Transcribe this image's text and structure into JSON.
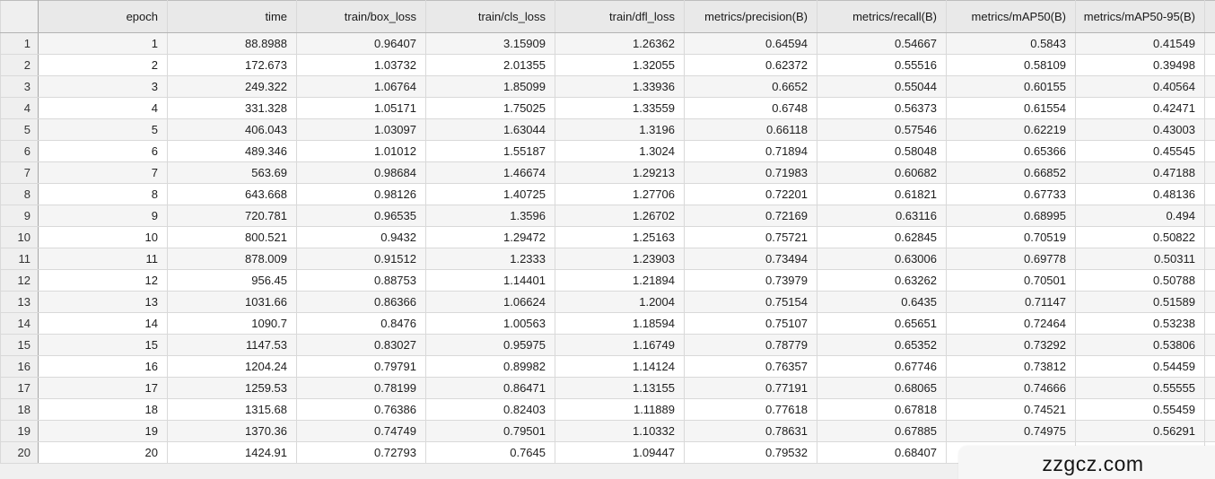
{
  "table": {
    "columns": [
      "epoch",
      "time",
      "train/box_loss",
      "train/cls_loss",
      "train/dfl_loss",
      "metrics/precision(B)",
      "metrics/recall(B)",
      "metrics/mAP50(B)",
      "metrics/mAP50-95(B)"
    ],
    "rows": [
      [
        "1",
        "1",
        "88.8988",
        "0.96407",
        "3.15909",
        "1.26362",
        "0.64594",
        "0.54667",
        "0.5843",
        "0.41549"
      ],
      [
        "2",
        "2",
        "172.673",
        "1.03732",
        "2.01355",
        "1.32055",
        "0.62372",
        "0.55516",
        "0.58109",
        "0.39498"
      ],
      [
        "3",
        "3",
        "249.322",
        "1.06764",
        "1.85099",
        "1.33936",
        "0.6652",
        "0.55044",
        "0.60155",
        "0.40564"
      ],
      [
        "4",
        "4",
        "331.328",
        "1.05171",
        "1.75025",
        "1.33559",
        "0.6748",
        "0.56373",
        "0.61554",
        "0.42471"
      ],
      [
        "5",
        "5",
        "406.043",
        "1.03097",
        "1.63044",
        "1.3196",
        "0.66118",
        "0.57546",
        "0.62219",
        "0.43003"
      ],
      [
        "6",
        "6",
        "489.346",
        "1.01012",
        "1.55187",
        "1.3024",
        "0.71894",
        "0.58048",
        "0.65366",
        "0.45545"
      ],
      [
        "7",
        "7",
        "563.69",
        "0.98684",
        "1.46674",
        "1.29213",
        "0.71983",
        "0.60682",
        "0.66852",
        "0.47188"
      ],
      [
        "8",
        "8",
        "643.668",
        "0.98126",
        "1.40725",
        "1.27706",
        "0.72201",
        "0.61821",
        "0.67733",
        "0.48136"
      ],
      [
        "9",
        "9",
        "720.781",
        "0.96535",
        "1.3596",
        "1.26702",
        "0.72169",
        "0.63116",
        "0.68995",
        "0.494"
      ],
      [
        "10",
        "10",
        "800.521",
        "0.9432",
        "1.29472",
        "1.25163",
        "0.75721",
        "0.62845",
        "0.70519",
        "0.50822"
      ],
      [
        "11",
        "11",
        "878.009",
        "0.91512",
        "1.2333",
        "1.23903",
        "0.73494",
        "0.63006",
        "0.69778",
        "0.50311"
      ],
      [
        "12",
        "12",
        "956.45",
        "0.88753",
        "1.14401",
        "1.21894",
        "0.73979",
        "0.63262",
        "0.70501",
        "0.50788"
      ],
      [
        "13",
        "13",
        "1031.66",
        "0.86366",
        "1.06624",
        "1.2004",
        "0.75154",
        "0.6435",
        "0.71147",
        "0.51589"
      ],
      [
        "14",
        "14",
        "1090.7",
        "0.8476",
        "1.00563",
        "1.18594",
        "0.75107",
        "0.65651",
        "0.72464",
        "0.53238"
      ],
      [
        "15",
        "15",
        "1147.53",
        "0.83027",
        "0.95975",
        "1.16749",
        "0.78779",
        "0.65352",
        "0.73292",
        "0.53806"
      ],
      [
        "16",
        "16",
        "1204.24",
        "0.79791",
        "0.89982",
        "1.14124",
        "0.76357",
        "0.67746",
        "0.73812",
        "0.54459"
      ],
      [
        "17",
        "17",
        "1259.53",
        "0.78199",
        "0.86471",
        "1.13155",
        "0.77191",
        "0.68065",
        "0.74666",
        "0.55555"
      ],
      [
        "18",
        "18",
        "1315.68",
        "0.76386",
        "0.82403",
        "1.11889",
        "0.77618",
        "0.67818",
        "0.74521",
        "0.55459"
      ],
      [
        "19",
        "19",
        "1370.36",
        "0.74749",
        "0.79501",
        "1.10332",
        "0.78631",
        "0.67885",
        "0.74975",
        "0.56291"
      ],
      [
        "20",
        "20",
        "1424.91",
        "0.72793",
        "0.7645",
        "1.09447",
        "0.79532",
        "0.68407",
        "",
        ""
      ]
    ]
  },
  "watermark": {
    "text": "zzgcz.com"
  },
  "colors": {
    "header_bg": "#e9e9e9",
    "gutter_bg": "#efefef",
    "stripe_odd": "#f5f5f5",
    "stripe_even": "#ffffff",
    "background": "#f0f0f0",
    "watermark_bg": "#f6f6f6"
  }
}
